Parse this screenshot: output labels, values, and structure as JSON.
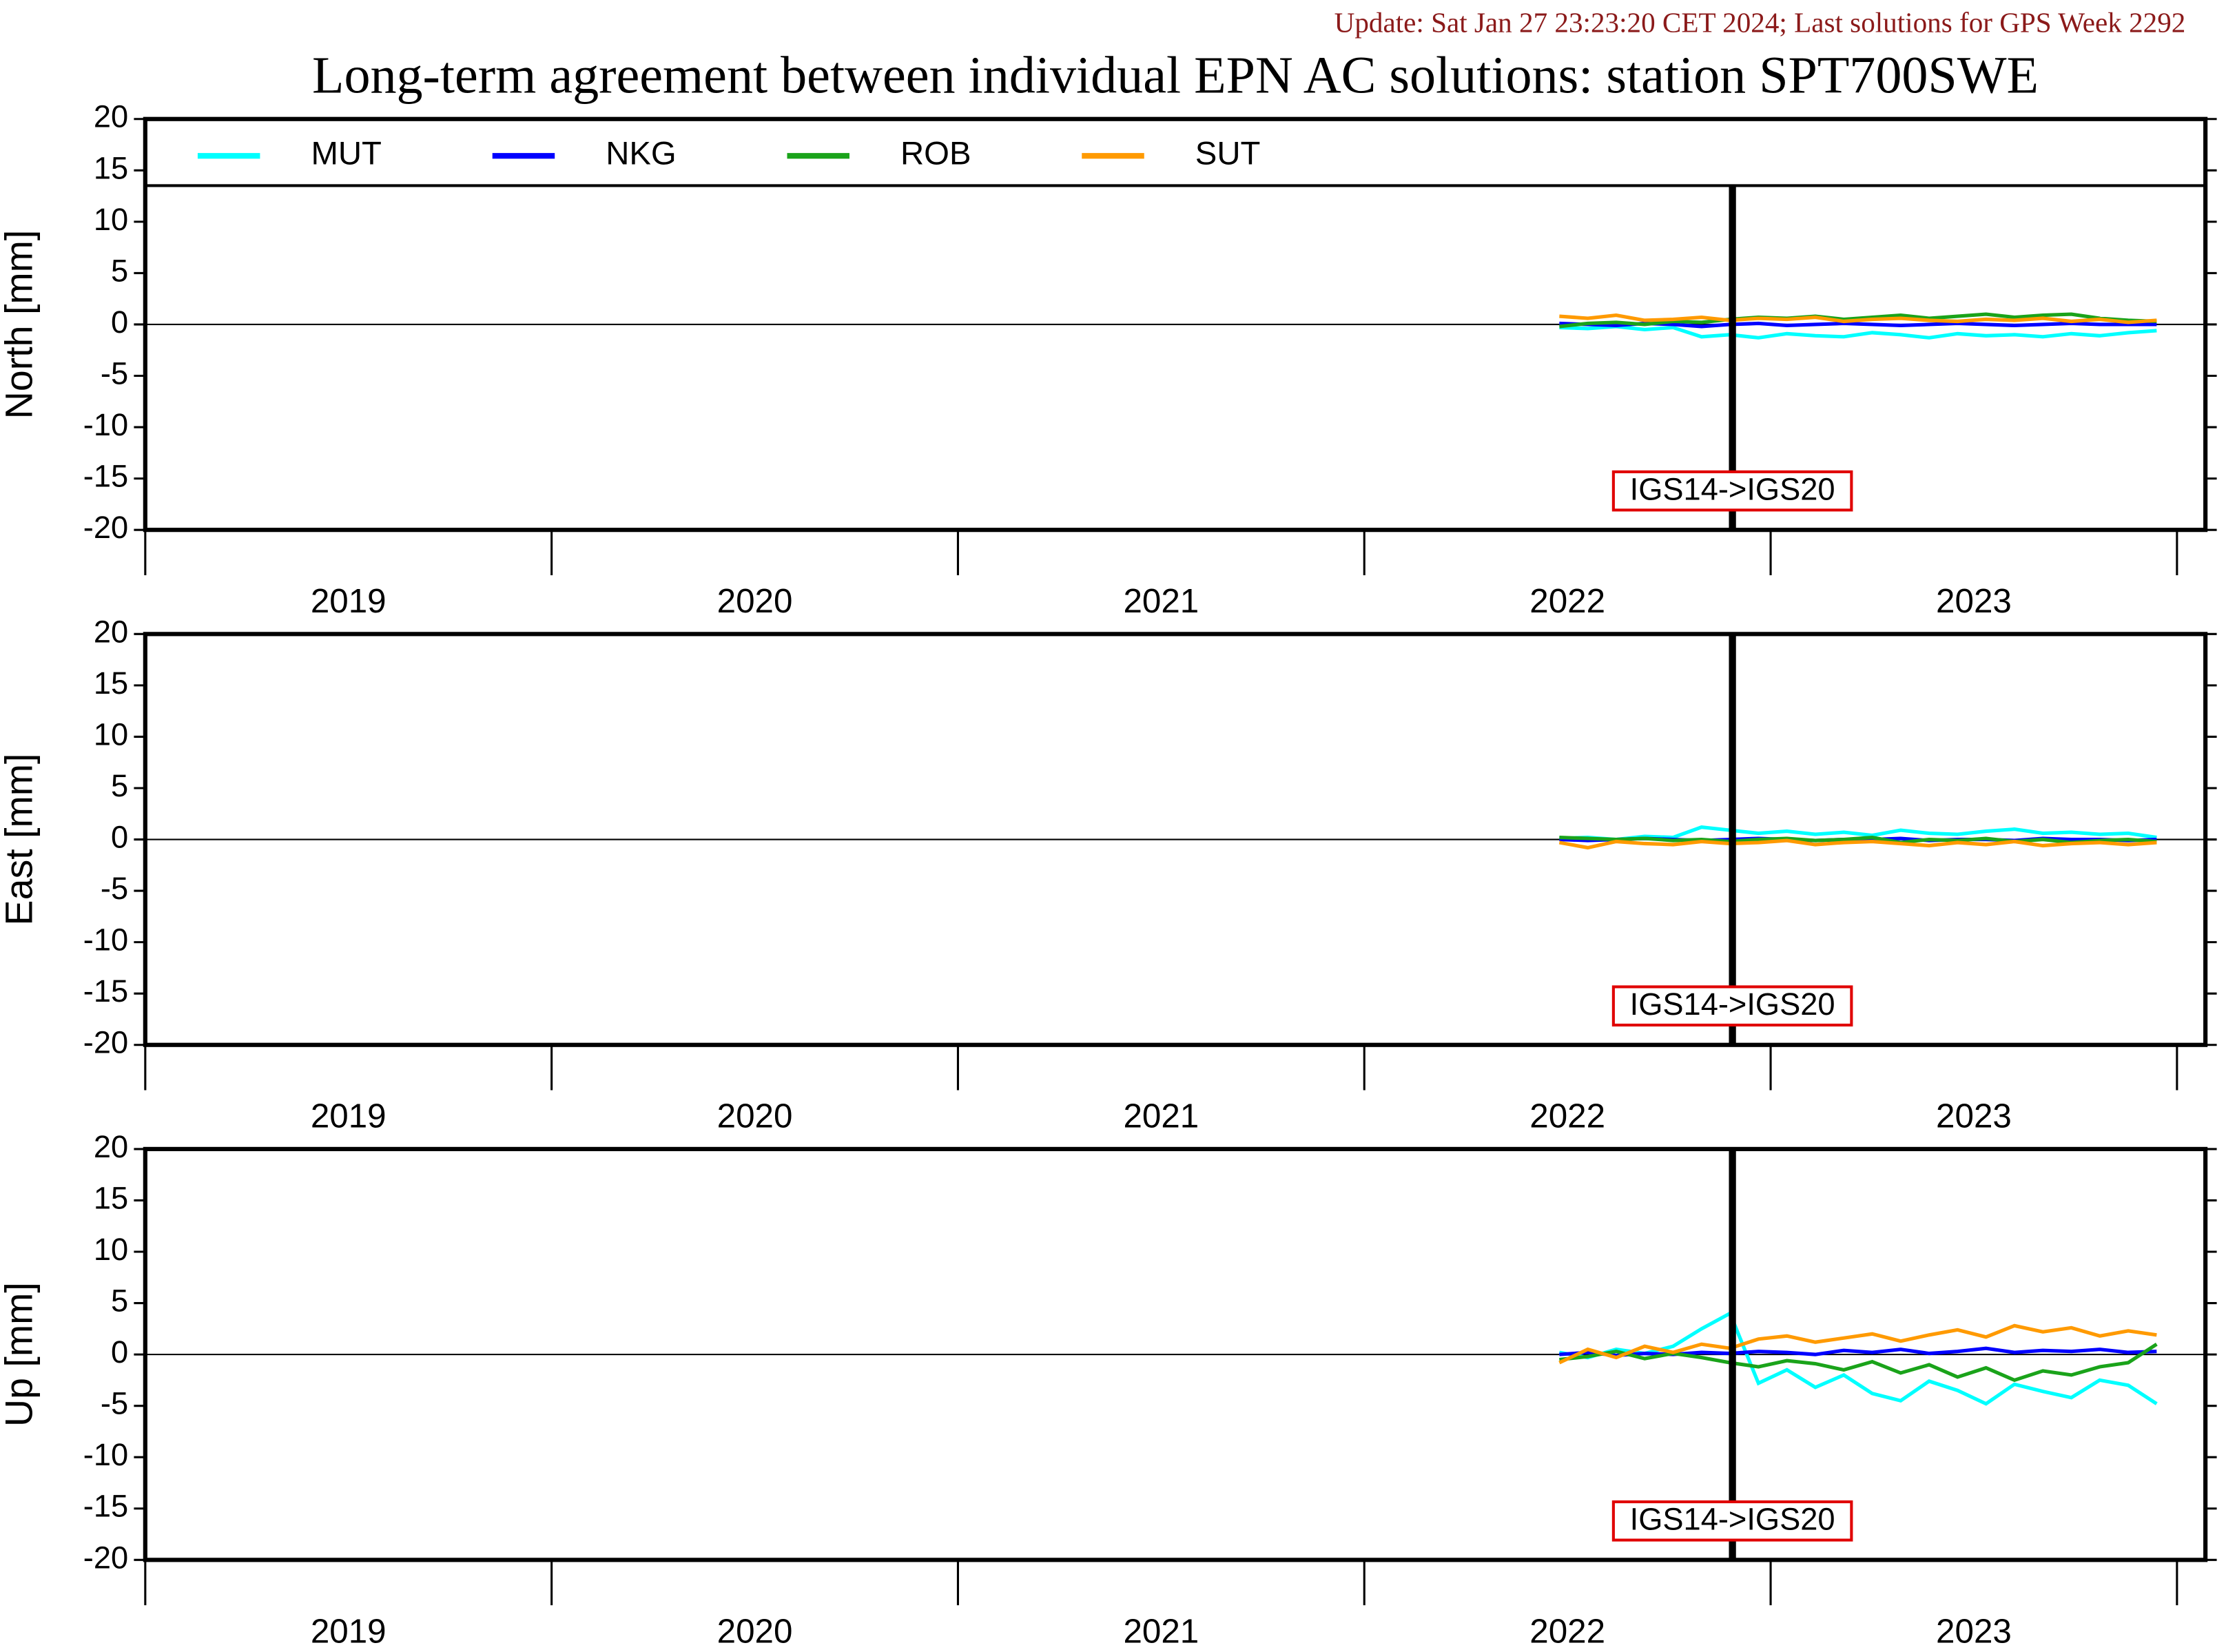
{
  "update": "Update: Sat Jan 27 23:23:20 CET 2024; Last solutions for GPS Week 2292",
  "title": "Long-term agreement between individual EPN AC solutions: station SPT700SWE",
  "chart_data": [
    {
      "type": "line",
      "ylabel": "North [mm]",
      "legend": "top",
      "xlim": [
        2019,
        2024.07
      ],
      "ylim": [
        -20,
        20
      ],
      "yticks": [
        -20,
        -15,
        -10,
        -5,
        0,
        5,
        10,
        15,
        20
      ],
      "year_bounds": [
        2019,
        2020,
        2021,
        2022,
        2023,
        2024
      ],
      "xticks": [
        {
          "value": 2019.5,
          "label": "2019"
        },
        {
          "value": 2020.5,
          "label": "2020"
        },
        {
          "value": 2021.5,
          "label": "2021"
        },
        {
          "value": 2022.5,
          "label": "2022"
        },
        {
          "value": 2023.5,
          "label": "2023"
        }
      ],
      "annotation": {
        "label": "IGS14->IGS20",
        "x": 2022.906
      },
      "x": [
        2022.48,
        2022.55,
        2022.62,
        2022.69,
        2022.76,
        2022.83,
        2022.9,
        2022.97,
        2023.04,
        2023.11,
        2023.18,
        2023.25,
        2023.32,
        2023.39,
        2023.46,
        2023.53,
        2023.6,
        2023.67,
        2023.74,
        2023.81,
        2023.88,
        2023.95
      ],
      "series": [
        {
          "name": "MUT",
          "color": "#00ffff",
          "values": [
            -0.3,
            -0.4,
            -0.2,
            -0.5,
            -0.3,
            -1.2,
            -1.0,
            -1.3,
            -0.9,
            -1.1,
            -1.2,
            -0.8,
            -1.0,
            -1.3,
            -0.9,
            -1.1,
            -1.0,
            -1.2,
            -0.9,
            -1.1,
            -0.8,
            -0.6
          ]
        },
        {
          "name": "NKG",
          "color": "#0000ff",
          "values": [
            0.1,
            0,
            -0.1,
            0.1,
            0,
            -0.2,
            0,
            0.1,
            -0.1,
            0,
            0.1,
            0,
            -0.1,
            0,
            0.1,
            0,
            -0.1,
            0,
            0.1,
            0,
            0,
            0
          ]
        },
        {
          "name": "ROB",
          "color": "#1aa31a",
          "values": [
            -0.2,
            0.1,
            0.2,
            0,
            0.3,
            0.2,
            0.5,
            0.7,
            0.6,
            0.8,
            0.5,
            0.7,
            0.9,
            0.6,
            0.8,
            1.0,
            0.7,
            0.9,
            1.0,
            0.6,
            0.4,
            0.3
          ]
        },
        {
          "name": "SUT",
          "color": "#ff9a00",
          "values": [
            0.8,
            0.6,
            0.9,
            0.4,
            0.5,
            0.7,
            0.4,
            0.6,
            0.5,
            0.7,
            0.3,
            0.5,
            0.6,
            0.4,
            0.3,
            0.5,
            0.4,
            0.6,
            0.3,
            0.5,
            0.2,
            0.4
          ]
        }
      ]
    },
    {
      "type": "line",
      "ylabel": "East [mm]",
      "xlim": [
        2019,
        2024.07
      ],
      "ylim": [
        -20,
        20
      ],
      "yticks": [
        -20,
        -15,
        -10,
        -5,
        0,
        5,
        10,
        15,
        20
      ],
      "year_bounds": [
        2019,
        2020,
        2021,
        2022,
        2023,
        2024
      ],
      "xticks": [
        {
          "value": 2019.5,
          "label": "2019"
        },
        {
          "value": 2020.5,
          "label": "2020"
        },
        {
          "value": 2021.5,
          "label": "2021"
        },
        {
          "value": 2022.5,
          "label": "2022"
        },
        {
          "value": 2023.5,
          "label": "2023"
        }
      ],
      "annotation": {
        "label": "IGS14->IGS20",
        "x": 2022.906
      },
      "x": [
        2022.48,
        2022.55,
        2022.62,
        2022.69,
        2022.76,
        2022.83,
        2022.9,
        2022.97,
        2023.04,
        2023.11,
        2023.18,
        2023.25,
        2023.32,
        2023.39,
        2023.46,
        2023.53,
        2023.6,
        2023.67,
        2023.74,
        2023.81,
        2023.88,
        2023.95
      ],
      "series": [
        {
          "color": "#00ffff",
          "values": [
            0.1,
            0.2,
            0,
            0.3,
            0.2,
            1.2,
            0.9,
            0.6,
            0.8,
            0.5,
            0.7,
            0.4,
            0.9,
            0.6,
            0.5,
            0.8,
            1.0,
            0.6,
            0.7,
            0.5,
            0.6,
            0.2
          ]
        },
        {
          "color": "#0000ff",
          "values": [
            0,
            -0.1,
            0,
            0.1,
            0,
            -0.1,
            0,
            0.1,
            0,
            -0.1,
            0,
            0,
            0.1,
            -0.1,
            0,
            0,
            -0.1,
            0.1,
            0,
            0,
            -0.1,
            0
          ]
        },
        {
          "color": "#1aa31a",
          "values": [
            0.2,
            0.1,
            0,
            0.1,
            -0.1,
            0,
            -0.2,
            0,
            0.1,
            -0.1,
            0,
            0.2,
            -0.3,
            0,
            -0.1,
            0.1,
            -0.2,
            0,
            -0.3,
            -0.1,
            0,
            -0.2
          ]
        },
        {
          "color": "#ff9a00",
          "values": [
            -0.3,
            -0.8,
            -0.2,
            -0.4,
            -0.5,
            -0.2,
            -0.4,
            -0.3,
            -0.1,
            -0.5,
            -0.3,
            -0.2,
            -0.4,
            -0.6,
            -0.3,
            -0.5,
            -0.2,
            -0.6,
            -0.4,
            -0.3,
            -0.5,
            -0.3
          ]
        }
      ]
    },
    {
      "type": "line",
      "ylabel": "Up [mm]",
      "xlim": [
        2019,
        2024.07
      ],
      "ylim": [
        -20,
        20
      ],
      "yticks": [
        -20,
        -15,
        -10,
        -5,
        0,
        5,
        10,
        15,
        20
      ],
      "year_bounds": [
        2019,
        2020,
        2021,
        2022,
        2023,
        2024
      ],
      "xticks": [
        {
          "value": 2019.5,
          "label": "2019"
        },
        {
          "value": 2020.5,
          "label": "2020"
        },
        {
          "value": 2021.5,
          "label": "2021"
        },
        {
          "value": 2022.5,
          "label": "2022"
        },
        {
          "value": 2023.5,
          "label": "2023"
        }
      ],
      "annotation": {
        "label": "IGS14->IGS20",
        "x": 2022.906
      },
      "x": [
        2022.48,
        2022.55,
        2022.62,
        2022.69,
        2022.76,
        2022.83,
        2022.9,
        2022.97,
        2023.04,
        2023.11,
        2023.18,
        2023.25,
        2023.32,
        2023.39,
        2023.46,
        2023.53,
        2023.6,
        2023.67,
        2023.74,
        2023.81,
        2023.88,
        2023.95
      ],
      "series": [
        {
          "color": "#00ffff",
          "values": [
            0.2,
            -0.3,
            0.5,
            0.1,
            0.8,
            2.5,
            4.0,
            -2.8,
            -1.5,
            -3.2,
            -2.0,
            -3.8,
            -4.5,
            -2.6,
            -3.5,
            -4.8,
            -2.9,
            -3.6,
            -4.2,
            -2.5,
            -3.0,
            -4.8
          ]
        },
        {
          "color": "#0000ff",
          "values": [
            0,
            0.2,
            -0.1,
            0.1,
            0,
            0.2,
            0.1,
            0.3,
            0.2,
            0,
            0.4,
            0.2,
            0.5,
            0.1,
            0.3,
            0.6,
            0.2,
            0.4,
            0.3,
            0.5,
            0.2,
            0.3
          ]
        },
        {
          "color": "#1aa31a",
          "values": [
            -0.5,
            -0.2,
            0.3,
            -0.4,
            0.1,
            -0.3,
            -0.8,
            -1.2,
            -0.6,
            -0.9,
            -1.5,
            -0.7,
            -1.8,
            -1.0,
            -2.2,
            -1.3,
            -2.5,
            -1.6,
            -2.0,
            -1.2,
            -0.8,
            1.0
          ]
        },
        {
          "color": "#ff9a00",
          "values": [
            -0.8,
            0.5,
            -0.3,
            0.8,
            0.2,
            1.0,
            0.6,
            1.5,
            1.8,
            1.2,
            1.6,
            2.0,
            1.3,
            1.9,
            2.4,
            1.7,
            2.8,
            2.2,
            2.6,
            1.8,
            2.3,
            1.9
          ]
        }
      ]
    }
  ]
}
